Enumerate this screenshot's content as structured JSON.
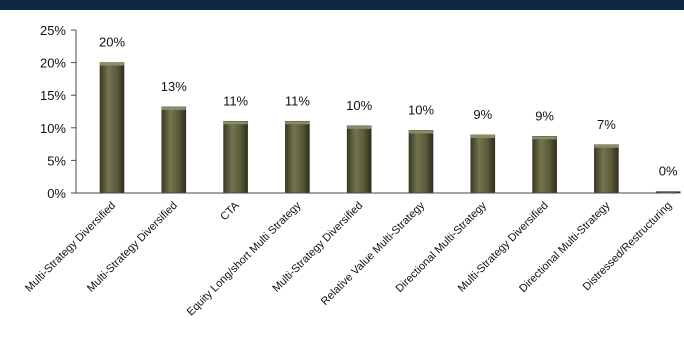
{
  "colors": {
    "header_bar": "#0f2740",
    "bar_fill": "#5a5a3a",
    "bar_light": "#7a7a58",
    "bar_dark": "#2f2f1e",
    "axis": "#4a4a4a"
  },
  "chart_data": {
    "type": "bar",
    "categories": [
      "Multi-Strategy Diversified",
      "Multi-Strategy Diversified",
      "CTA",
      "Equity Long/short Multi Strategy",
      "Multi-Strategy Diversified",
      "Relative Value Multi-Strategy",
      "Directional Multi-Strategy",
      "Multi-Strategy Diversified",
      "Directional Multi-Strategy",
      "Distressed/Restructuring"
    ],
    "values": [
      20,
      13,
      11,
      11,
      10,
      10,
      9,
      9,
      7,
      0
    ],
    "value_labels": [
      "20%",
      "13%",
      "11%",
      "11%",
      "10%",
      "10%",
      "9%",
      "9%",
      "7%",
      "0%"
    ],
    "bar_values": [
      20,
      13.2,
      11,
      11,
      10.3,
      9.6,
      8.9,
      8.7,
      7.4,
      0.2
    ],
    "yticks": [
      "0%",
      "5%",
      "10%",
      "15%",
      "20%",
      "25%"
    ],
    "ylim": [
      0,
      25
    ],
    "ytick_values": [
      0,
      5,
      10,
      15,
      20,
      25
    ],
    "title": "",
    "xlabel": "",
    "ylabel": "",
    "grid": false,
    "legend": "none"
  }
}
